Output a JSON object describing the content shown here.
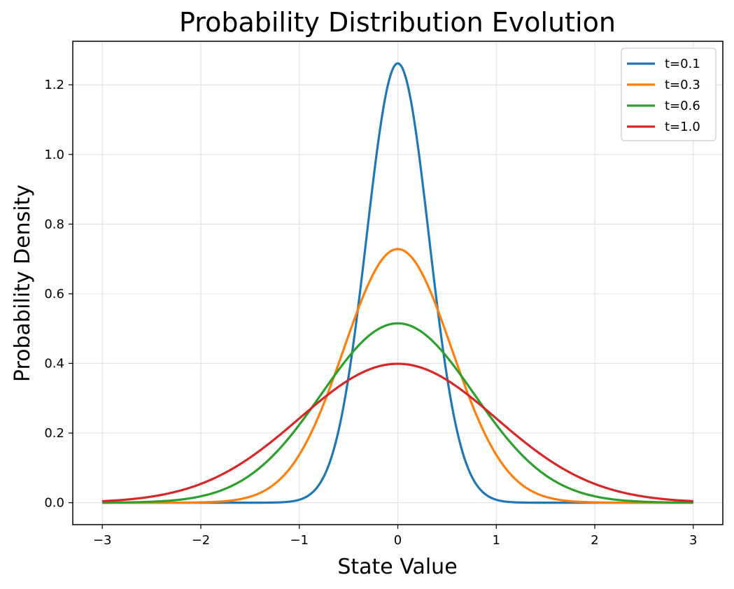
{
  "chart_data": {
    "type": "line",
    "title": "Probability Distribution Evolution",
    "xlabel": "State Value",
    "ylabel": "Probability Density",
    "xlim": [
      -3.3,
      3.3
    ],
    "ylim": [
      -0.063,
      1.325
    ],
    "xticks": [
      -3,
      -2,
      -1,
      0,
      1,
      2,
      3
    ],
    "xtick_labels": [
      "−3",
      "−2",
      "−1",
      "0",
      "1",
      "2",
      "3"
    ],
    "yticks": [
      0.0,
      0.2,
      0.4,
      0.6,
      0.8,
      1.0,
      1.2
    ],
    "ytick_labels": [
      "0.0",
      "0.2",
      "0.4",
      "0.6",
      "0.8",
      "1.0",
      "1.2"
    ],
    "grid": true,
    "legend_position": "top-right",
    "x_domain": [
      -3,
      3
    ],
    "series": [
      {
        "name": "t=0.1",
        "color": "#1f77b4",
        "distribution": "normal",
        "mean": 0,
        "std": 0.3162,
        "peak": 1.262
      },
      {
        "name": "t=0.3",
        "color": "#ff7f0e",
        "distribution": "normal",
        "mean": 0,
        "std": 0.5477,
        "peak": 0.728
      },
      {
        "name": "t=0.6",
        "color": "#2ca02c",
        "distribution": "normal",
        "mean": 0,
        "std": 0.7746,
        "peak": 0.515
      },
      {
        "name": "t=1.0",
        "color": "#d62728",
        "distribution": "normal",
        "mean": 0,
        "std": 1.0,
        "peak": 0.399
      }
    ]
  }
}
